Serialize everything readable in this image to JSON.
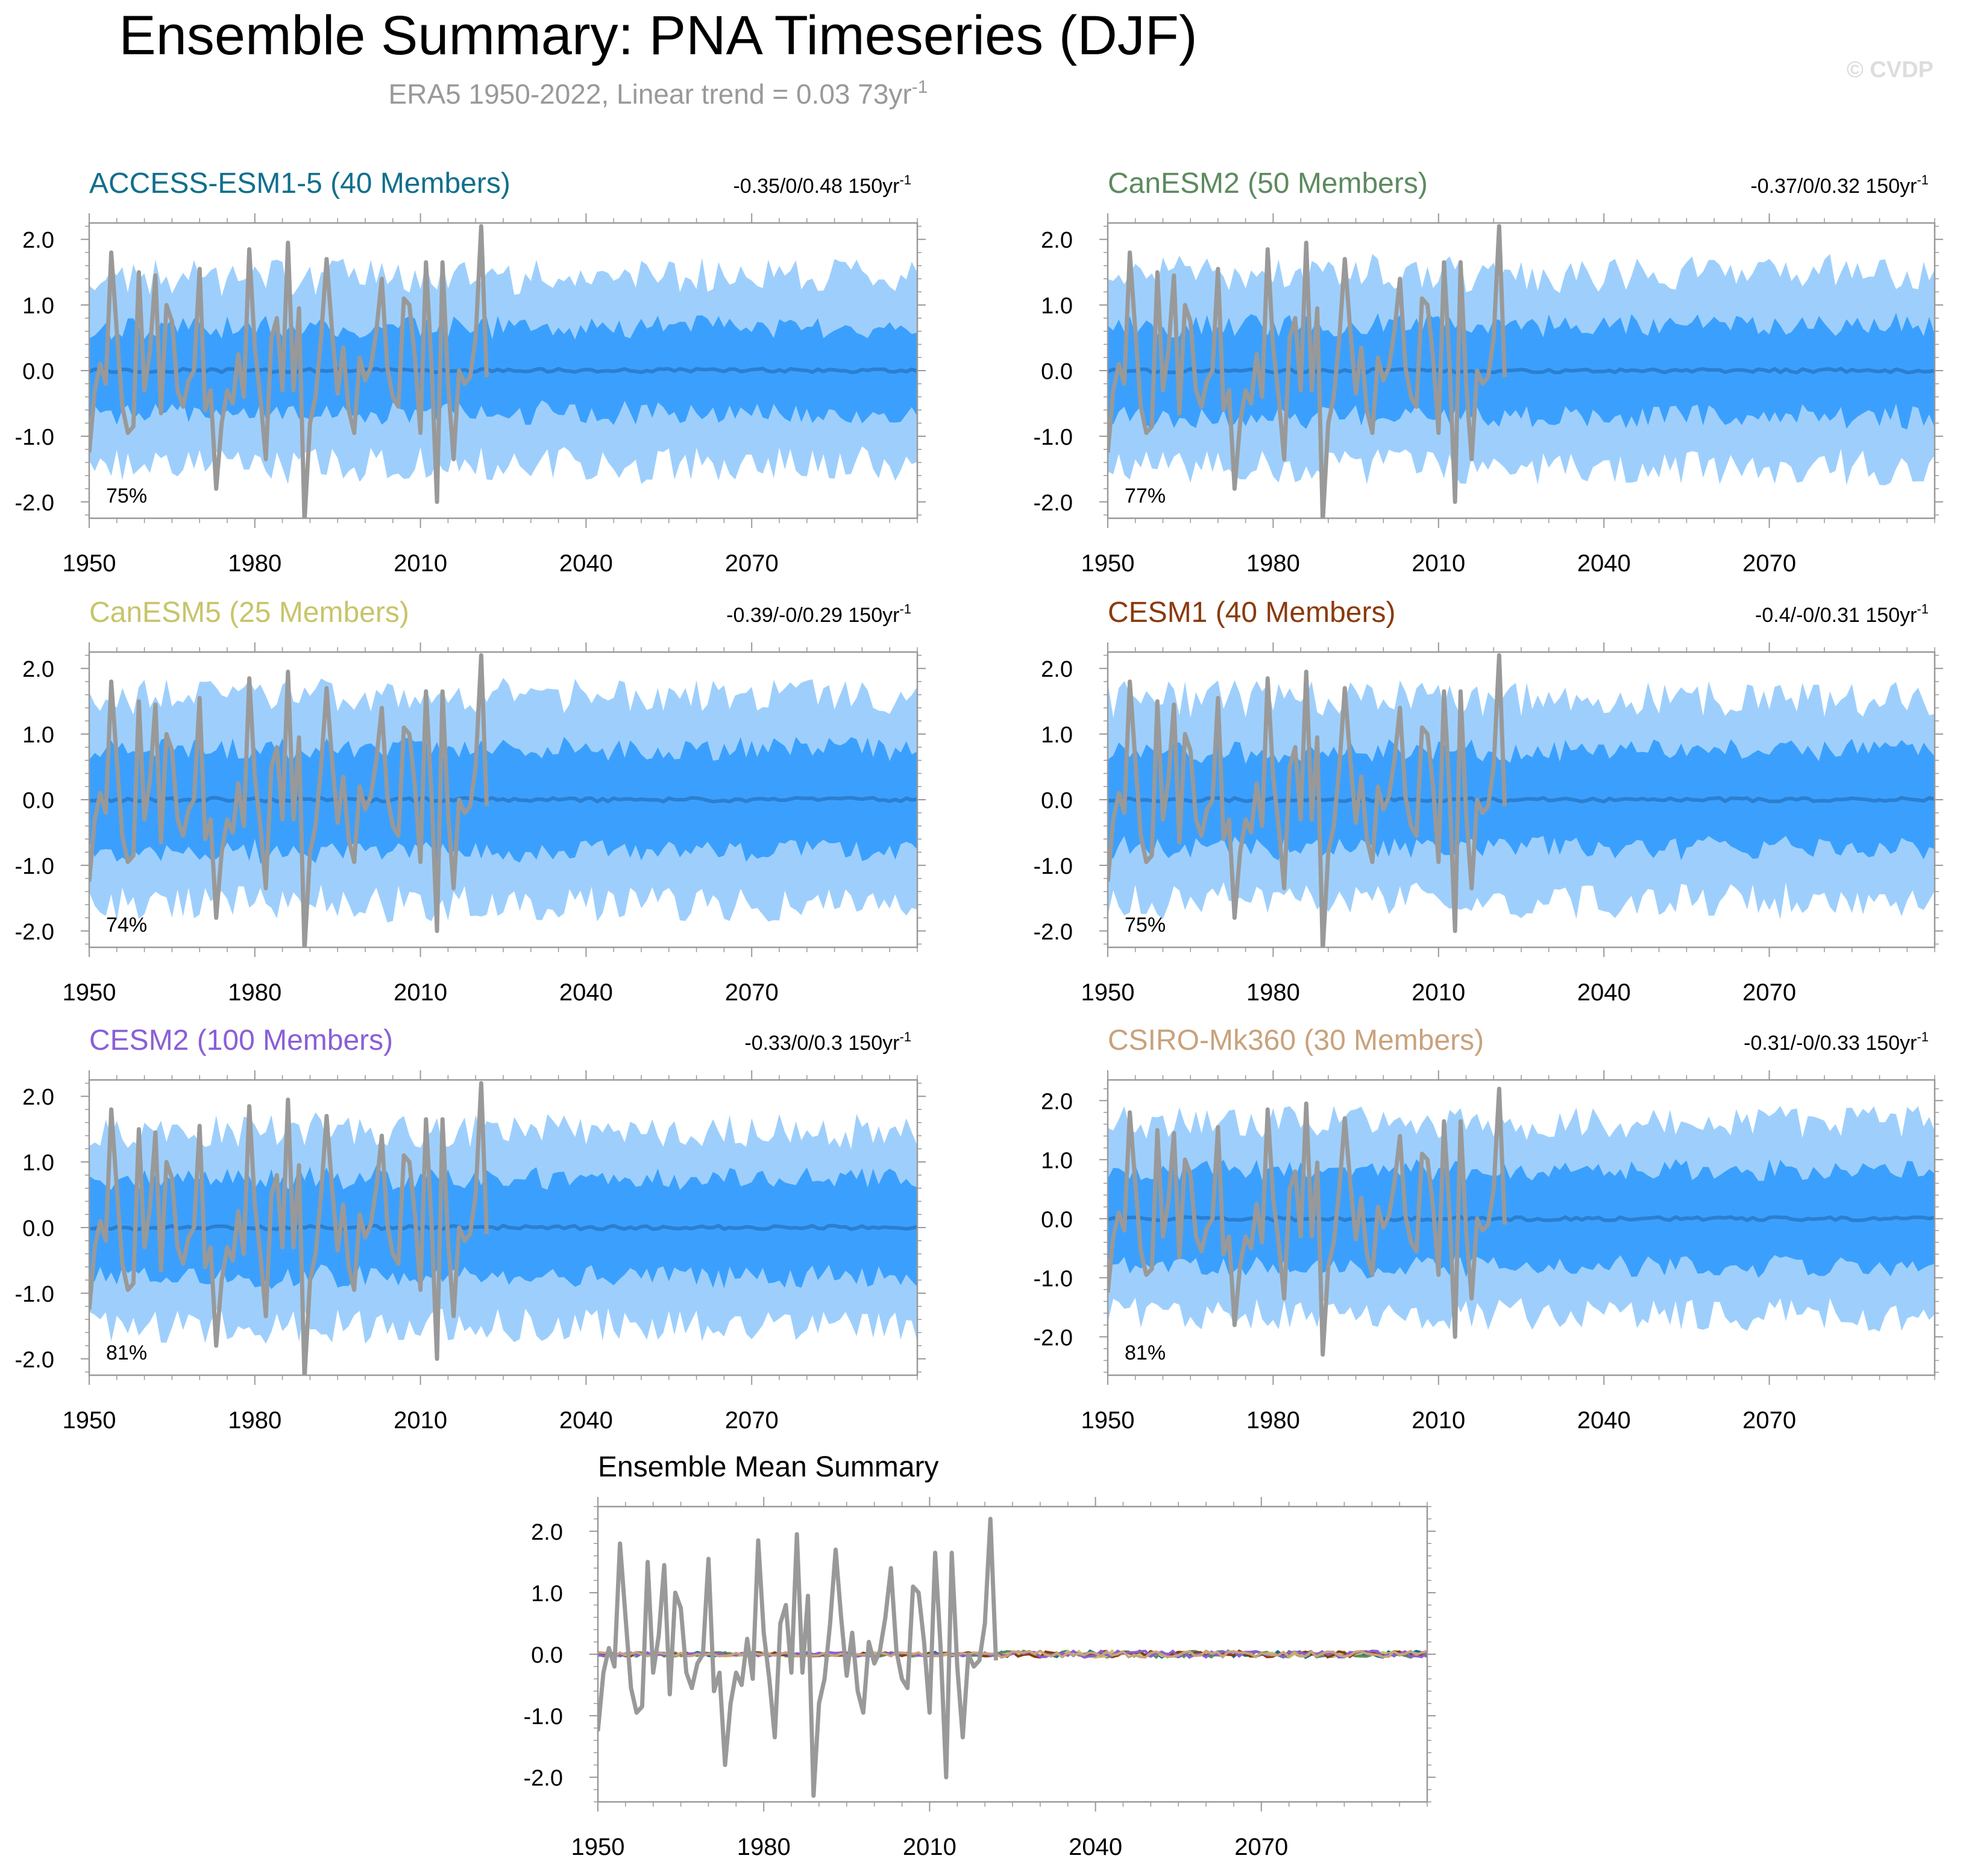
{
  "title": "Ensemble Summary: PNA Timeseries (DJF)",
  "subtitle_main": "ERA5 1950-2022, Linear trend = 0.03 73yr",
  "subtitle_sup": "-1",
  "watermark": "© CVDP",
  "colors": {
    "outer_band": "#9ecffc",
    "inner_band": "#3ba0fd",
    "ensemble_mean": "#2c7fcf",
    "observations": "#999999",
    "frame": "#999999"
  },
  "chart_data": [
    {
      "type": "area",
      "title": "ACCESS-ESM1-5 (40 Members)",
      "title_color": "#106f8c",
      "trend_text": "-0.35/0/0.48 150yr",
      "trend_sup": "-1",
      "percent_label": "75%",
      "x_range": [
        1950,
        2100
      ],
      "xlim": [
        1950,
        2100
      ],
      "ylim": [
        -2.25,
        2.25
      ],
      "x_ticks": [
        1950,
        1980,
        2010,
        2040,
        2070
      ],
      "y_ticks": [
        2.0,
        1.0,
        0.0,
        -1.0,
        -2.0
      ],
      "y_tick_labels": [
        "2.0",
        "1.0",
        "0.0",
        "-1.0",
        "-2.0"
      ],
      "bands": {
        "inner_halfwidth": 0.62,
        "outer_halfwidth": 1.35
      },
      "noise_seed": 11
    },
    {
      "type": "area",
      "title": "CanESM2 (50 Members)",
      "title_color": "#5d8a5f",
      "trend_text": "-0.37/0/0.32 150yr",
      "trend_sup": "-1",
      "percent_label": "77%",
      "x_range": [
        1950,
        2100
      ],
      "xlim": [
        1950,
        2100
      ],
      "ylim": [
        -2.25,
        2.25
      ],
      "x_ticks": [
        1950,
        1980,
        2010,
        2040,
        2070
      ],
      "y_ticks": [
        2.0,
        1.0,
        0.0,
        -1.0,
        -2.0
      ],
      "y_tick_labels": [
        "2.0",
        "1.0",
        "0.0",
        "-1.0",
        "-2.0"
      ],
      "bands": {
        "inner_halfwidth": 0.66,
        "outer_halfwidth": 1.4
      },
      "noise_seed": 23
    },
    {
      "type": "area",
      "title": "CanESM5 (25 Members)",
      "title_color": "#c8c46a",
      "trend_text": "-0.39/-0/0.29 150yr",
      "trend_sup": "-1",
      "percent_label": "74%",
      "x_range": [
        1950,
        2100
      ],
      "xlim": [
        1950,
        2100
      ],
      "ylim": [
        -2.25,
        2.25
      ],
      "x_ticks": [
        1950,
        1980,
        2010,
        2040,
        2070
      ],
      "y_ticks": [
        2.0,
        1.0,
        0.0,
        -1.0,
        -2.0
      ],
      "y_tick_labels": [
        "2.0",
        "1.0",
        "0.0",
        "-1.0",
        "-2.0"
      ],
      "bands": {
        "inner_halfwidth": 0.75,
        "outer_halfwidth": 1.5
      },
      "noise_seed": 37
    },
    {
      "type": "area",
      "title": "CESM1 (40 Members)",
      "title_color": "#8a3a0c",
      "trend_text": "-0.4/-0/0.31 150yr",
      "trend_sup": "-1",
      "percent_label": "75%",
      "x_range": [
        1950,
        2100
      ],
      "xlim": [
        1950,
        2100
      ],
      "ylim": [
        -2.25,
        2.25
      ],
      "x_ticks": [
        1950,
        1980,
        2010,
        2040,
        2070
      ],
      "y_ticks": [
        2.0,
        1.0,
        0.0,
        -1.0,
        -2.0
      ],
      "y_tick_labels": [
        "2.0",
        "1.0",
        "0.0",
        "-1.0",
        "-2.0"
      ],
      "bands": {
        "inner_halfwidth": 0.7,
        "outer_halfwidth": 1.45
      },
      "noise_seed": 41
    },
    {
      "type": "area",
      "title": "CESM2 (100 Members)",
      "title_color": "#8a5fd6",
      "trend_text": "-0.33/0/0.3 150yr",
      "trend_sup": "-1",
      "percent_label": "81%",
      "x_range": [
        1950,
        2100
      ],
      "xlim": [
        1950,
        2100
      ],
      "ylim": [
        -2.25,
        2.25
      ],
      "x_ticks": [
        1950,
        1980,
        2010,
        2040,
        2070
      ],
      "y_ticks": [
        2.0,
        1.0,
        0.0,
        -1.0,
        -2.0
      ],
      "y_tick_labels": [
        "2.0",
        "1.0",
        "0.0",
        "-1.0",
        "-2.0"
      ],
      "bands": {
        "inner_halfwidth": 0.72,
        "outer_halfwidth": 1.4
      },
      "noise_seed": 53
    },
    {
      "type": "area",
      "title": "CSIRO-Mk360 (30 Members)",
      "title_color": "#c9a27c",
      "trend_text": "-0.31/-0/0.33 150yr",
      "trend_sup": "-1",
      "percent_label": "81%",
      "x_range": [
        1950,
        2100
      ],
      "xlim": [
        1950,
        2100
      ],
      "ylim": [
        -2.65,
        2.35
      ],
      "x_ticks": [
        1950,
        1980,
        2010,
        2040,
        2070
      ],
      "y_ticks": [
        2.0,
        1.0,
        0.0,
        -1.0,
        -2.0
      ],
      "y_tick_labels": [
        "2.0",
        "1.0",
        "0.0",
        "-1.0",
        "-2.0"
      ],
      "bands": {
        "inner_halfwidth": 0.78,
        "outer_halfwidth": 1.55
      },
      "noise_seed": 67
    },
    {
      "type": "line",
      "title": "Ensemble Mean Summary",
      "title_color": "#000000",
      "x_range": [
        1950,
        2100
      ],
      "xlim": [
        1950,
        2100
      ],
      "ylim": [
        -2.4,
        2.4
      ],
      "x_ticks": [
        1950,
        1980,
        2010,
        2040,
        2070
      ],
      "y_ticks": [
        2.0,
        1.0,
        0.0,
        -1.0,
        -2.0
      ],
      "y_tick_labels": [
        "2.0",
        "1.0",
        "0.0",
        "-1.0",
        "-2.0"
      ],
      "mean_colors": [
        "#106f8c",
        "#5d8a5f",
        "#c8c46a",
        "#8a3a0c",
        "#8a5fd6",
        "#c9a27c"
      ],
      "noise_seed": 79
    }
  ],
  "observations": {
    "name": "ERA5",
    "x": [
      1950,
      1951,
      1952,
      1953,
      1954,
      1955,
      1956,
      1957,
      1958,
      1959,
      1960,
      1961,
      1962,
      1963,
      1964,
      1965,
      1966,
      1967,
      1968,
      1969,
      1970,
      1971,
      1972,
      1973,
      1974,
      1975,
      1976,
      1977,
      1978,
      1979,
      1980,
      1981,
      1982,
      1983,
      1984,
      1985,
      1986,
      1987,
      1988,
      1989,
      1990,
      1991,
      1992,
      1993,
      1994,
      1995,
      1996,
      1997,
      1998,
      1999,
      2000,
      2001,
      2002,
      2003,
      2004,
      2005,
      2006,
      2007,
      2008,
      2009,
      2010,
      2011,
      2012,
      2013,
      2014,
      2015,
      2016,
      2017,
      2018,
      2019,
      2020,
      2021,
      2022
    ],
    "y": [
      -1.25,
      -0.3,
      0.1,
      -0.2,
      1.8,
      0.6,
      -0.55,
      -0.95,
      -0.85,
      1.5,
      -0.3,
      0.3,
      1.45,
      -0.65,
      1.0,
      0.75,
      -0.3,
      -0.55,
      -0.15,
      0.0,
      1.55,
      -0.6,
      -0.3,
      -1.8,
      -0.8,
      -0.3,
      -0.5,
      0.25,
      -0.4,
      1.85,
      0.35,
      -0.4,
      -1.35,
      0.5,
      0.8,
      -0.3,
      1.95,
      -0.3,
      0.95,
      -2.3,
      -0.8,
      -0.4,
      0.5,
      1.7,
      0.6,
      -0.35,
      0.35,
      -0.6,
      -0.95,
      0.2,
      -0.15,
      0.05,
      0.6,
      1.4,
      0.05,
      -0.4,
      -0.55,
      1.1,
      1.0,
      0.2,
      -0.95,
      1.65,
      0.1,
      -2.0,
      1.65,
      -0.2,
      -1.35,
      0.0,
      -0.2,
      -0.1,
      0.5,
      2.2,
      -0.1
    ]
  }
}
